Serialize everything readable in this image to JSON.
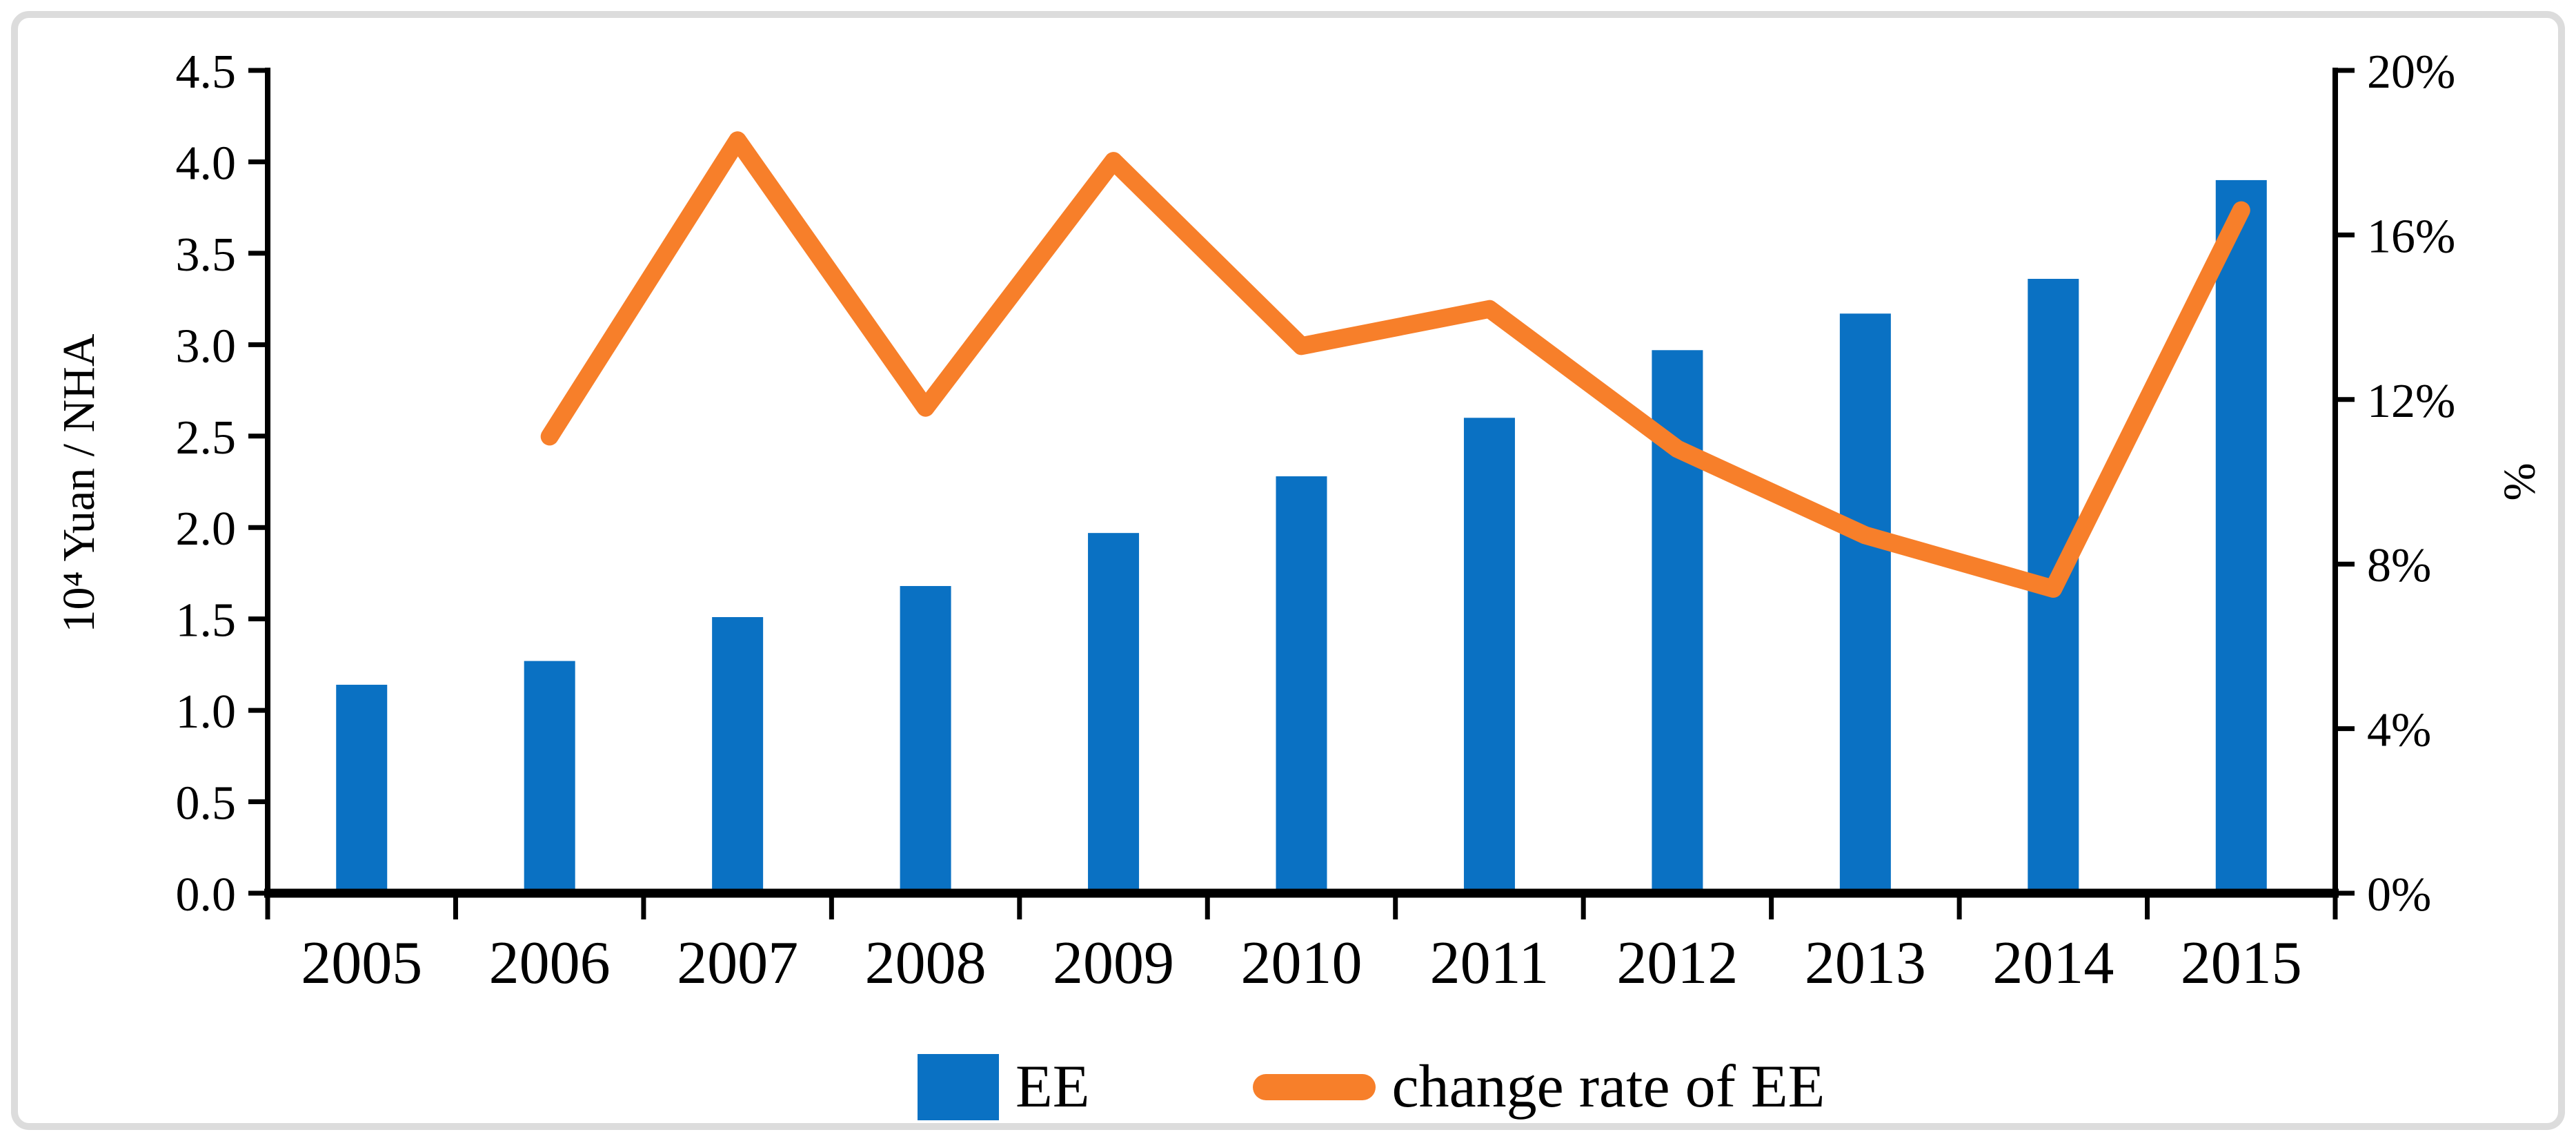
{
  "figure": {
    "background": "#ffffff",
    "frame_color": "#dcdcdc",
    "text_color": "#000000"
  },
  "chart_data": {
    "type": "combo-bar-line",
    "title": "",
    "categories": [
      "2005",
      "2006",
      "2007",
      "2008",
      "2009",
      "2010",
      "2011",
      "2012",
      "2013",
      "2014",
      "2015"
    ],
    "series": [
      {
        "name": "EE",
        "type": "bar",
        "axis": "left",
        "color": "#0a71c3",
        "values": [
          1.14,
          1.27,
          1.51,
          1.68,
          1.97,
          2.28,
          2.6,
          2.97,
          3.17,
          3.36,
          3.9
        ]
      },
      {
        "name": "change rate of EE",
        "type": "line",
        "axis": "right",
        "color": "#f77f2a",
        "values_percent": [
          null,
          11.1,
          18.3,
          11.8,
          17.8,
          13.3,
          14.2,
          10.8,
          8.7,
          7.4,
          16.6
        ]
      }
    ],
    "left_axis": {
      "title": "10⁴ Yuan / NHA",
      "min": 0.0,
      "max": 4.5,
      "step": 0.5,
      "tick_labels": [
        "0.0",
        "0.5",
        "1.0",
        "1.5",
        "2.0",
        "2.5",
        "3.0",
        "3.5",
        "4.0",
        "4.5"
      ]
    },
    "right_axis": {
      "title": "%",
      "min": 0,
      "max": 20,
      "step": 4,
      "tick_labels": [
        "0%",
        "4%",
        "8%",
        "12%",
        "16%",
        "20%"
      ]
    },
    "grid": false,
    "legend_position": "bottom",
    "legend": {
      "bar_label": "EE",
      "line_label": "change rate of EE"
    }
  }
}
